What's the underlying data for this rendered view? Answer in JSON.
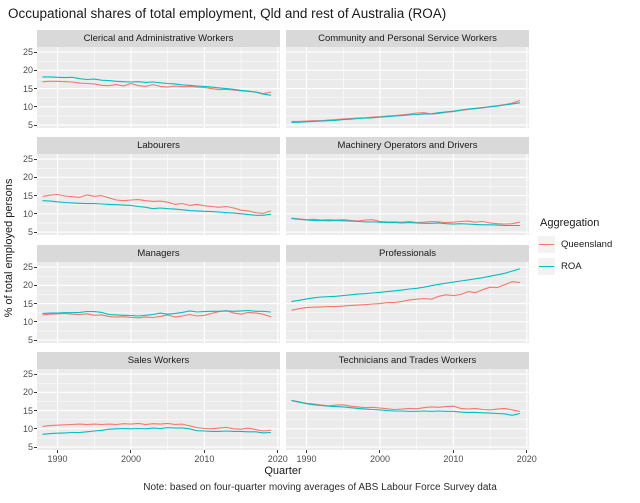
{
  "chart_data": {
    "type": "line",
    "title": "Occupational shares of total employment, Qld and rest of Australia (ROA)",
    "xlabel": "Quarter",
    "ylabel": "% of total employed persons",
    "caption": "Note: based on four-quarter moving averages of ABS Labour Force Survey data",
    "x": [
      1988,
      1989,
      1990,
      1991,
      1992,
      1993,
      1994,
      1995,
      1996,
      1997,
      1998,
      1999,
      2000,
      2001,
      2002,
      2003,
      2004,
      2005,
      2006,
      2007,
      2008,
      2009,
      2010,
      2011,
      2012,
      2013,
      2014,
      2015,
      2016,
      2017,
      2018,
      2019
    ],
    "x_ticks": [
      1990,
      2000,
      2010,
      2020
    ],
    "x_minor_ticks": [
      1995,
      2005,
      2015
    ],
    "y_ticks": [
      5,
      10,
      15,
      20,
      25
    ],
    "y_minor_ticks": [
      7.5,
      12.5,
      17.5,
      22.5
    ],
    "xlim": [
      1987.2,
      2020.3
    ],
    "ylim": [
      4.2,
      26.4
    ],
    "grid": "white major and minor gridlines on grey panels",
    "facet_layout": "4 rows x 2 cols",
    "legend": {
      "title": "Aggregation",
      "position": "right",
      "entries": [
        {
          "label": "Queensland",
          "color": "#F8766D"
        },
        {
          "label": "ROA",
          "color": "#00BFC4"
        }
      ]
    },
    "facets": [
      {
        "label": "Clerical and Administrative Workers",
        "series": [
          {
            "name": "Queensland",
            "values": [
              16.9,
              17.0,
              17.0,
              16.9,
              16.8,
              16.5,
              16.4,
              16.3,
              15.9,
              15.8,
              16.1,
              15.7,
              16.4,
              15.8,
              15.6,
              16.1,
              15.6,
              15.4,
              15.7,
              15.5,
              15.6,
              15.4,
              15.3,
              15.0,
              14.7,
              14.8,
              14.6,
              14.4,
              14.2,
              14.1,
              13.6,
              14.0
            ]
          },
          {
            "name": "ROA",
            "values": [
              18.2,
              18.2,
              18.1,
              18.0,
              18.1,
              17.7,
              17.5,
              17.6,
              17.3,
              17.2,
              17.0,
              16.9,
              16.8,
              16.9,
              16.7,
              16.8,
              16.6,
              16.4,
              16.3,
              16.0,
              15.9,
              15.7,
              15.6,
              15.4,
              15.2,
              15.0,
              14.8,
              14.5,
              14.3,
              14.0,
              13.5,
              13.2
            ]
          }
        ]
      },
      {
        "label": "Community and Personal Service Workers",
        "series": [
          {
            "name": "Queensland",
            "values": [
              6.0,
              6.0,
              6.1,
              6.2,
              6.2,
              6.4,
              6.5,
              6.7,
              6.8,
              6.9,
              7.0,
              7.2,
              7.3,
              7.5,
              7.6,
              7.8,
              8.0,
              8.3,
              8.4,
              8.0,
              8.2,
              8.5,
              8.7,
              9.0,
              9.3,
              9.5,
              9.7,
              10.1,
              10.3,
              10.6,
              11.0,
              11.7
            ]
          },
          {
            "name": "ROA",
            "values": [
              5.7,
              5.8,
              5.9,
              6.0,
              6.1,
              6.2,
              6.3,
              6.5,
              6.6,
              6.8,
              6.9,
              7.0,
              7.2,
              7.3,
              7.5,
              7.6,
              7.8,
              7.9,
              8.0,
              8.1,
              8.4,
              8.6,
              8.8,
              9.1,
              9.4,
              9.6,
              9.8,
              10.0,
              10.2,
              10.5,
              10.8,
              11.1
            ]
          }
        ]
      },
      {
        "label": "Labourers",
        "series": [
          {
            "name": "Queensland",
            "values": [
              14.8,
              15.1,
              15.3,
              14.9,
              14.7,
              14.5,
              15.2,
              14.8,
              15.0,
              14.4,
              13.8,
              13.6,
              13.8,
              13.9,
              13.6,
              13.4,
              13.5,
              13.2,
              12.6,
              12.8,
              12.3,
              12.6,
              12.2,
              12.0,
              11.8,
              12.0,
              11.6,
              11.0,
              10.8,
              10.3,
              10.1,
              10.8
            ]
          },
          {
            "name": "ROA",
            "values": [
              13.6,
              13.5,
              13.3,
              13.1,
              13.0,
              12.9,
              12.8,
              12.8,
              12.7,
              12.6,
              12.5,
              12.4,
              12.3,
              12.0,
              11.8,
              11.4,
              11.6,
              11.4,
              11.3,
              11.1,
              10.9,
              10.8,
              10.7,
              10.6,
              10.5,
              10.3,
              10.2,
              10.0,
              9.8,
              9.6,
              9.6,
              9.9
            ]
          }
        ]
      },
      {
        "label": "Machinery Operators and Drivers",
        "series": [
          {
            "name": "Queensland",
            "values": [
              8.8,
              8.6,
              8.4,
              8.5,
              8.3,
              8.4,
              8.3,
              8.4,
              8.2,
              8.0,
              8.3,
              8.4,
              7.9,
              7.8,
              7.8,
              7.7,
              7.9,
              7.6,
              7.7,
              7.9,
              7.8,
              7.6,
              7.7,
              7.9,
              8.0,
              7.7,
              7.9,
              7.5,
              7.3,
              7.2,
              7.3,
              7.7
            ]
          },
          {
            "name": "ROA",
            "values": [
              8.7,
              8.5,
              8.3,
              8.2,
              8.2,
              8.1,
              8.2,
              8.1,
              8.0,
              7.9,
              7.8,
              7.8,
              7.7,
              7.6,
              7.6,
              7.5,
              7.6,
              7.5,
              7.4,
              7.4,
              7.5,
              7.3,
              7.2,
              7.3,
              7.2,
              7.1,
              7.0,
              7.0,
              6.9,
              6.8,
              6.8,
              6.8
            ]
          }
        ]
      },
      {
        "label": "Managers",
        "series": [
          {
            "name": "Queensland",
            "values": [
              11.9,
              12.1,
              12.2,
              12.3,
              12.1,
              12.0,
              12.2,
              11.8,
              11.9,
              11.5,
              11.3,
              11.4,
              11.2,
              11.1,
              11.3,
              11.2,
              11.5,
              11.9,
              11.3,
              11.6,
              12.0,
              11.6,
              11.8,
              12.3,
              12.8,
              13.1,
              12.4,
              12.1,
              12.6,
              12.4,
              12.1,
              11.4
            ]
          },
          {
            "name": "ROA",
            "values": [
              12.3,
              12.4,
              12.4,
              12.5,
              12.5,
              12.6,
              12.8,
              12.8,
              12.6,
              12.0,
              11.9,
              11.8,
              11.7,
              11.6,
              11.8,
              12.0,
              12.4,
              12.1,
              12.3,
              12.6,
              13.0,
              12.7,
              12.8,
              12.9,
              12.9,
              13.0,
              12.9,
              13.0,
              13.1,
              12.9,
              12.9,
              12.7
            ]
          }
        ]
      },
      {
        "label": "Professionals",
        "series": [
          {
            "name": "Queensland",
            "values": [
              13.2,
              13.6,
              13.9,
              14.0,
              14.1,
              14.2,
              14.2,
              14.3,
              14.5,
              14.6,
              14.7,
              14.9,
              15.0,
              15.3,
              15.3,
              15.6,
              16.0,
              16.2,
              16.4,
              16.2,
              17.0,
              17.4,
              17.2,
              17.5,
              18.3,
              18.0,
              18.8,
              19.5,
              19.4,
              20.2,
              21.0,
              20.8
            ]
          },
          {
            "name": "ROA",
            "values": [
              15.6,
              15.9,
              16.3,
              16.6,
              16.8,
              16.9,
              17.0,
              17.2,
              17.4,
              17.6,
              17.7,
              17.9,
              18.1,
              18.3,
              18.5,
              18.7,
              19.0,
              19.2,
              19.5,
              19.9,
              20.3,
              20.6,
              20.9,
              21.2,
              21.5,
              21.8,
              22.1,
              22.5,
              22.9,
              23.3,
              23.9,
              24.5
            ]
          }
        ]
      },
      {
        "label": "Sales Workers",
        "series": [
          {
            "name": "Queensland",
            "values": [
              10.7,
              10.9,
              11.0,
              11.1,
              11.2,
              11.3,
              11.2,
              11.3,
              11.2,
              11.3,
              11.2,
              11.4,
              11.3,
              11.5,
              11.2,
              11.4,
              11.3,
              11.5,
              11.2,
              11.3,
              10.8,
              10.3,
              10.1,
              10.0,
              10.2,
              10.4,
              10.0,
              9.9,
              10.2,
              9.8,
              9.4,
              9.6
            ]
          },
          {
            "name": "ROA",
            "values": [
              8.5,
              8.7,
              8.8,
              8.9,
              9.0,
              9.0,
              9.2,
              9.4,
              9.6,
              9.9,
              10.0,
              10.1,
              10.0,
              10.1,
              10.0,
              10.2,
              10.1,
              10.3,
              10.2,
              10.2,
              10.0,
              9.5,
              9.4,
              9.3,
              9.3,
              9.4,
              9.3,
              9.3,
              9.2,
              9.2,
              8.9,
              9.0
            ]
          }
        ]
      },
      {
        "label": "Technicians and Trades Workers",
        "series": [
          {
            "name": "Queensland",
            "values": [
              17.8,
              17.4,
              17.0,
              16.8,
              16.5,
              16.3,
              16.5,
              16.6,
              16.2,
              16.0,
              15.8,
              15.9,
              15.7,
              15.5,
              15.3,
              15.4,
              15.6,
              15.5,
              15.8,
              16.0,
              15.9,
              16.1,
              16.2,
              15.6,
              15.4,
              15.6,
              15.3,
              15.2,
              15.4,
              15.6,
              15.2,
              14.8
            ]
          },
          {
            "name": "ROA",
            "values": [
              17.7,
              17.3,
              16.9,
              16.6,
              16.4,
              16.2,
              16.1,
              16.0,
              15.8,
              15.6,
              15.4,
              15.3,
              15.2,
              15.0,
              14.9,
              14.9,
              14.8,
              14.8,
              14.9,
              14.8,
              14.9,
              14.8,
              14.8,
              14.6,
              14.5,
              14.5,
              14.4,
              14.3,
              14.2,
              14.1,
              13.7,
              14.2
            ]
          }
        ]
      }
    ]
  },
  "colors": {
    "panel_background": "#EBEBEB",
    "strip_background": "#D9D9D9",
    "gridline": "#FFFFFF",
    "tick_mark": "#333333",
    "tick_label": "#4D4D4D",
    "queensland": "#F8766D",
    "roa": "#00BFC4"
  }
}
